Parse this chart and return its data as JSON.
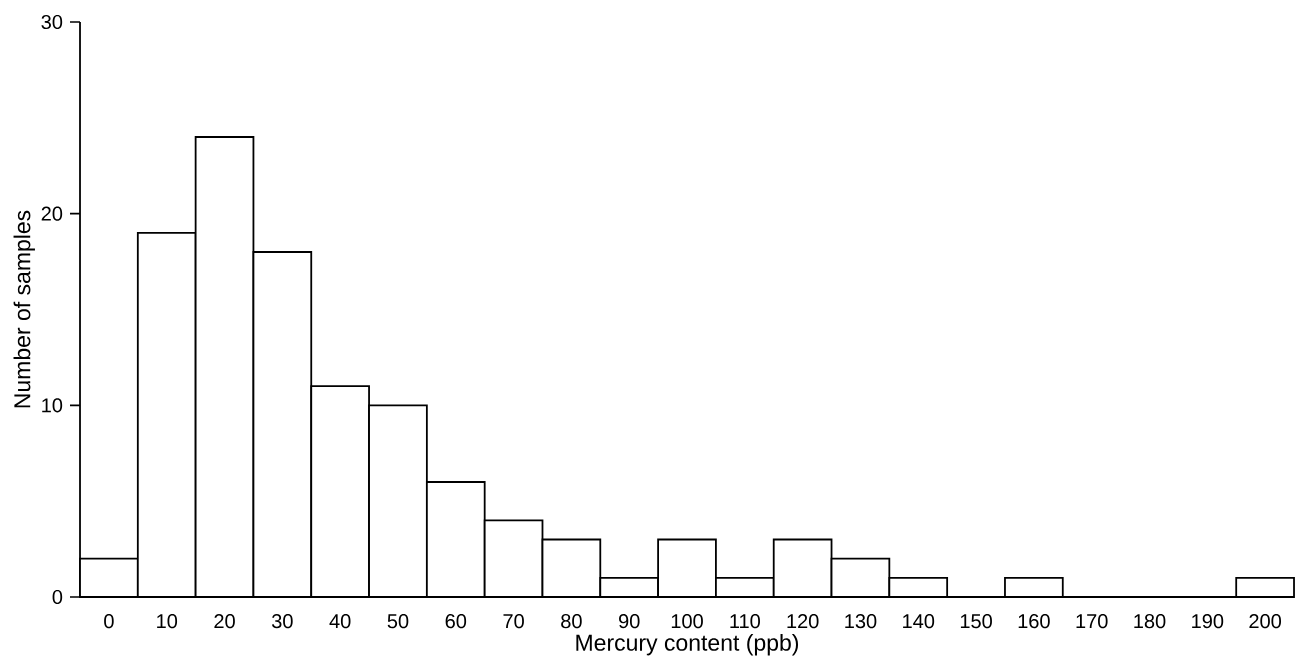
{
  "chart_data": {
    "type": "bar",
    "xlabel": "Mercury content (ppb)",
    "ylabel": "Number of samples",
    "categories": [
      "0",
      "10",
      "20",
      "30",
      "40",
      "50",
      "60",
      "70",
      "80",
      "90",
      "100",
      "110",
      "120",
      "130",
      "140",
      "150",
      "160",
      "170",
      "180",
      "190",
      "200"
    ],
    "values": [
      2,
      19,
      24,
      18,
      11,
      10,
      6,
      4,
      3,
      1,
      3,
      1,
      3,
      2,
      1,
      0,
      1,
      0,
      0,
      0,
      1
    ],
    "color": "#ffffff",
    "ylim": [
      0,
      30
    ],
    "yticks": [
      0,
      10,
      20,
      30
    ],
    "grid": false
  }
}
